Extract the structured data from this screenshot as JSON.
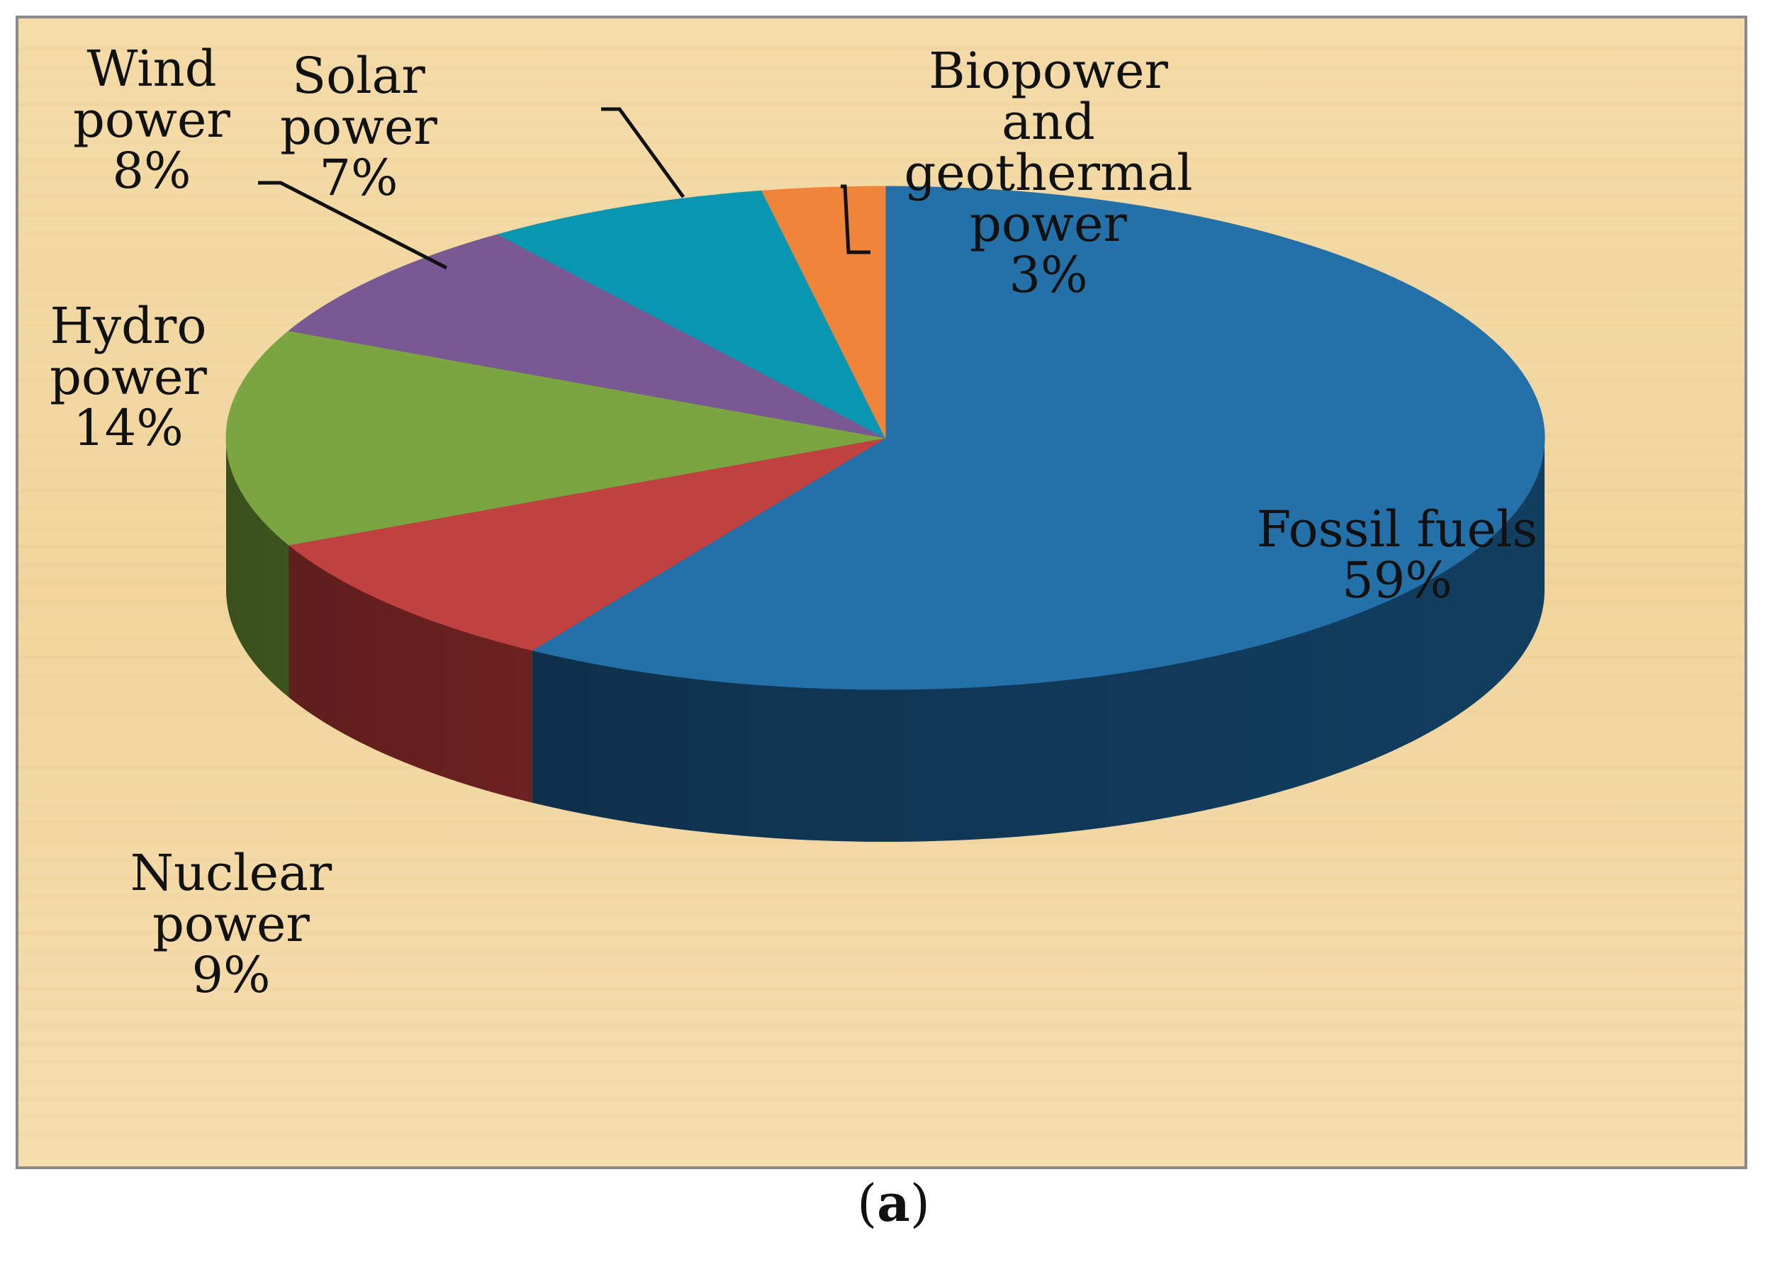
{
  "chart_data": {
    "type": "pie",
    "style": "3d-exploded-none",
    "title": "",
    "slices": [
      {
        "label": [
          "Fossil fuels"
        ],
        "pct_text": "59%",
        "value": 59,
        "color": "#2470a8",
        "side_color": "#123e60"
      },
      {
        "label": [
          "Nuclear",
          "power"
        ],
        "pct_text": "9%",
        "value": 9,
        "color": "#bf4140",
        "side_color": "#8d2c2b"
      },
      {
        "label": [
          "Hydro",
          "power"
        ],
        "pct_text": "14%",
        "value": 14,
        "color": "#7ba540",
        "side_color": "#5a7c2c"
      },
      {
        "label": [
          "Wind",
          "power"
        ],
        "pct_text": "8%",
        "value": 8,
        "color": "#7a5893",
        "side_color": "#563e68"
      },
      {
        "label": [
          "Solar",
          "power"
        ],
        "pct_text": "7%",
        "value": 7,
        "color": "#0896b1",
        "side_color": "#066c80"
      },
      {
        "label": [
          "Biopower",
          "and",
          "geothermal",
          "power"
        ],
        "pct_text": "3%",
        "value": 3,
        "color": "#f0843a",
        "side_color": "#b3602a"
      }
    ],
    "background_color": "#f3d9a4"
  },
  "caption": {
    "text": "a"
  }
}
